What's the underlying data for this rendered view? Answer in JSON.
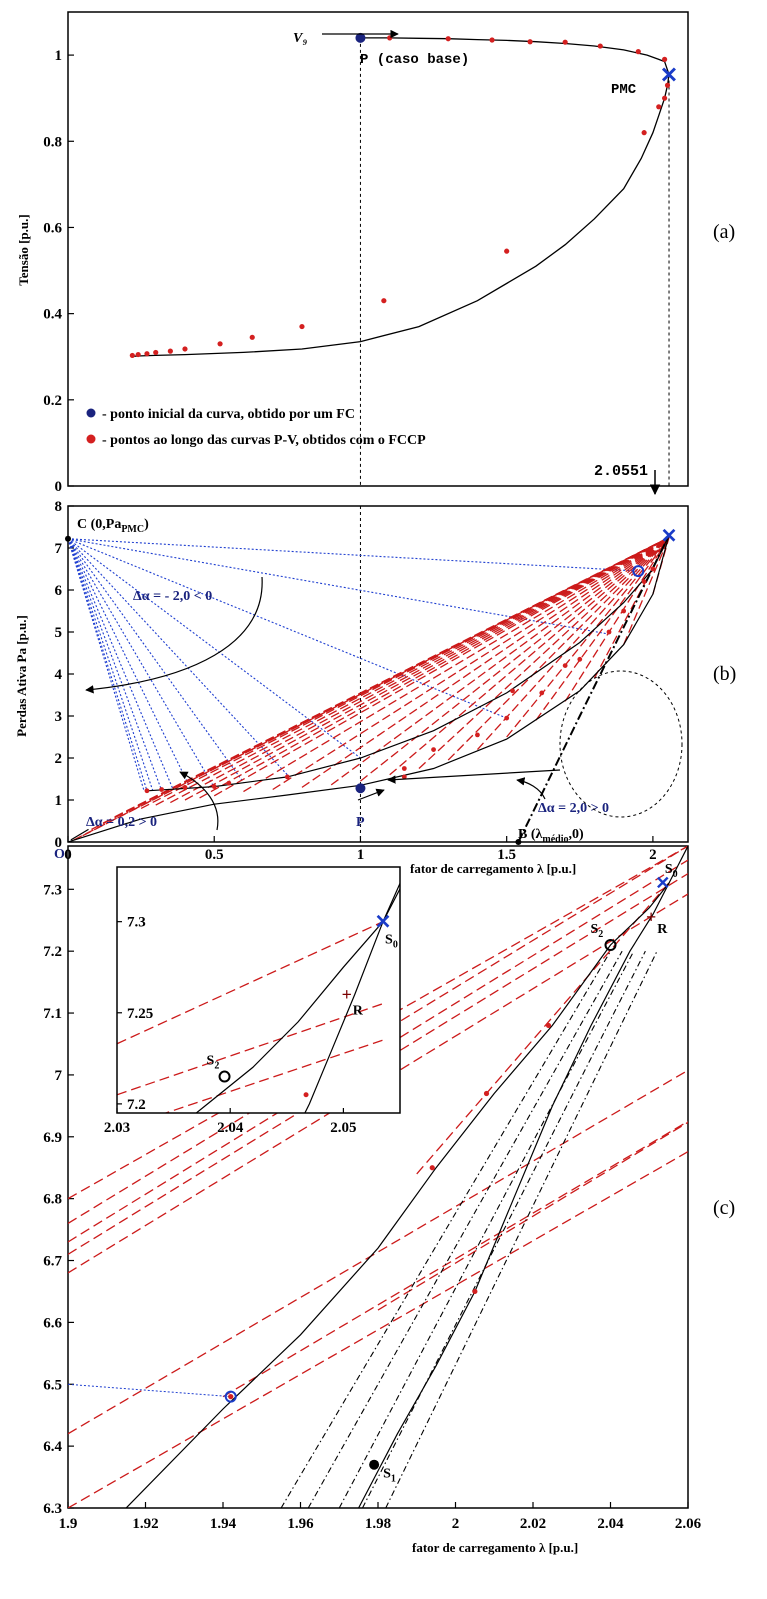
{
  "figure": {
    "panel_labels": [
      "(a)",
      "(b)",
      "(c)"
    ]
  },
  "colors": {
    "curve": "#000000",
    "point_red": "#d42020",
    "point_blue": "#1a237e",
    "cross_blue": "#1a3cc8",
    "dotted_blue": "#1f3fd0",
    "dashed_red": "#cc1a1a"
  },
  "chart_data": [
    {
      "id": "a",
      "type": "line",
      "title": "",
      "xlabel": "",
      "ylabel": "Tensão [p.u.]",
      "xlim": [
        0,
        2.12
      ],
      "ylim": [
        0,
        1.1
      ],
      "yticks": [
        "0",
        "0.2",
        "0.4",
        "0.6",
        "0.8",
        "1"
      ],
      "series": [
        {
          "x": [
            1.0,
            1.1,
            1.2,
            1.3,
            1.4,
            1.5,
            1.6,
            1.7,
            1.8,
            1.9,
            1.98,
            2.02,
            2.04,
            2.0551,
            2.05,
            2.04,
            2.02,
            2.0,
            1.96,
            1.9,
            1.8,
            1.7,
            1.6,
            1.4,
            1.2,
            1.0,
            0.8,
            0.6,
            0.4,
            0.3,
            0.25,
            0.22
          ],
          "y": [
            1.04,
            1.04,
            1.039,
            1.038,
            1.036,
            1.034,
            1.031,
            1.027,
            1.021,
            1.012,
            1.0,
            0.99,
            0.985,
            0.955,
            0.93,
            0.9,
            0.86,
            0.82,
            0.76,
            0.69,
            0.62,
            0.56,
            0.51,
            0.43,
            0.37,
            0.335,
            0.318,
            0.31,
            0.305,
            0.303,
            0.302,
            0.301
          ]
        }
      ],
      "points": {
        "x": [
          1.1,
          1.3,
          1.45,
          1.58,
          1.7,
          1.82,
          1.95,
          2.04,
          2.05,
          2.04,
          2.02,
          1.97,
          1.5,
          1.08,
          0.8,
          0.63,
          0.52,
          0.4,
          0.35,
          0.3,
          0.27,
          0.24,
          0.22
        ],
        "y": [
          1.04,
          1.038,
          1.035,
          1.031,
          1.03,
          1.021,
          1.008,
          0.99,
          0.93,
          0.9,
          0.88,
          0.82,
          0.545,
          0.43,
          0.37,
          0.345,
          0.33,
          0.318,
          0.313,
          0.31,
          0.307,
          0.305,
          0.303
        ]
      },
      "annotations": {
        "p_label": "P (caso base)",
        "v9_label": "V₉",
        "pmc_label": "PMC",
        "lambda_max": "2.0551",
        "legend_dark": "- ponto inicial da curva,  obtido por um FC",
        "legend_red": "- pontos ao longo das curvas P-V, obtidos com o FCCP"
      }
    },
    {
      "id": "b",
      "type": "line",
      "title": "",
      "xlabel": "fator de carregamento λ [p.u.]",
      "ylabel": "Perdas Ativa Pa [p.u.]",
      "xlim": [
        0,
        2.12
      ],
      "ylim": [
        0,
        8
      ],
      "xticks": [
        "0",
        "0.5",
        "1",
        "1.5",
        "2"
      ],
      "yticks": [
        "0",
        "1",
        "2",
        "3",
        "4",
        "5",
        "6",
        "7",
        "8"
      ],
      "annotations": {
        "c_label": "C (0,Pa",
        "c_sub": "PMC",
        "c_close": ")",
        "neg_label": "Δα = - 2,0 < 0",
        "pos_label_left": "Δα = 0,2 > 0",
        "pos_label_right": "Δα = 2,0 > 0",
        "p_label": "P",
        "b_label": "B (λ",
        "b_sub": "médio",
        "b_close": ",0)",
        "o_label": "O"
      }
    },
    {
      "id": "c",
      "type": "line",
      "title": "",
      "xlabel": "fator de carregamento λ [p.u.]",
      "ylabel": "",
      "xlim": [
        1.9,
        2.06
      ],
      "ylim": [
        6.3,
        7.37
      ],
      "xticks": [
        "1.9",
        "1.92",
        "1.94",
        "1.96",
        "1.98",
        "2",
        "2.02",
        "2.04",
        "2.06"
      ],
      "yticks": [
        "6.3",
        "6.4",
        "6.5",
        "6.6",
        "6.7",
        "6.8",
        "6.9",
        "7",
        "7.1",
        "7.2",
        "7.3"
      ],
      "annotations": {
        "s0": "S",
        "s0_sub": "0",
        "s1": "S",
        "s1_sub": "1",
        "s2": "S",
        "s2_sub": "2",
        "r": "R"
      },
      "inset": {
        "xlim": [
          2.03,
          2.055
        ],
        "ylim": [
          7.195,
          7.33
        ],
        "xticks": [
          "2.03",
          "2.04",
          "2.05"
        ],
        "yticks": [
          "7.2",
          "7.25",
          "7.3"
        ]
      }
    }
  ]
}
